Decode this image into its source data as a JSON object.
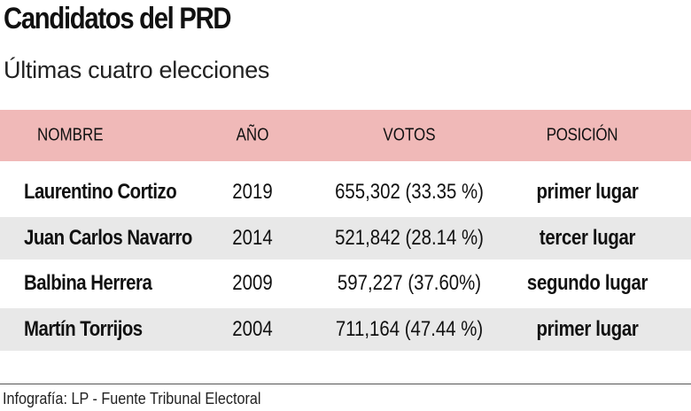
{
  "title": "Candidatos del PRD",
  "subtitle": "Últimas cuatro elecciones",
  "colors": {
    "header_bg": "#f0b9b8",
    "alt_row_bg": "#e8e8e8"
  },
  "table": {
    "headers": [
      "NOMBRE",
      "AÑO",
      "VOTOS",
      "POSICIÓN"
    ],
    "rows": [
      {
        "nombre": "Laurentino Cortizo",
        "anio": "2019",
        "votos": "655,302 (33.35 %)",
        "posicion": "primer lugar"
      },
      {
        "nombre": "Juan Carlos Navarro",
        "anio": "2014",
        "votos": "521,842 (28.14 %)",
        "posicion": "tercer lugar"
      },
      {
        "nombre": "Balbina Herrera",
        "anio": "2009",
        "votos": "597,227 (37.60%)",
        "posicion": "segundo lugar"
      },
      {
        "nombre": "Martín Torrijos",
        "anio": "2004",
        "votos": "711,164 (47.44 %)",
        "posicion": "primer lugar"
      }
    ]
  },
  "footer": "Infografía: LP - Fuente Tribunal Electoral"
}
